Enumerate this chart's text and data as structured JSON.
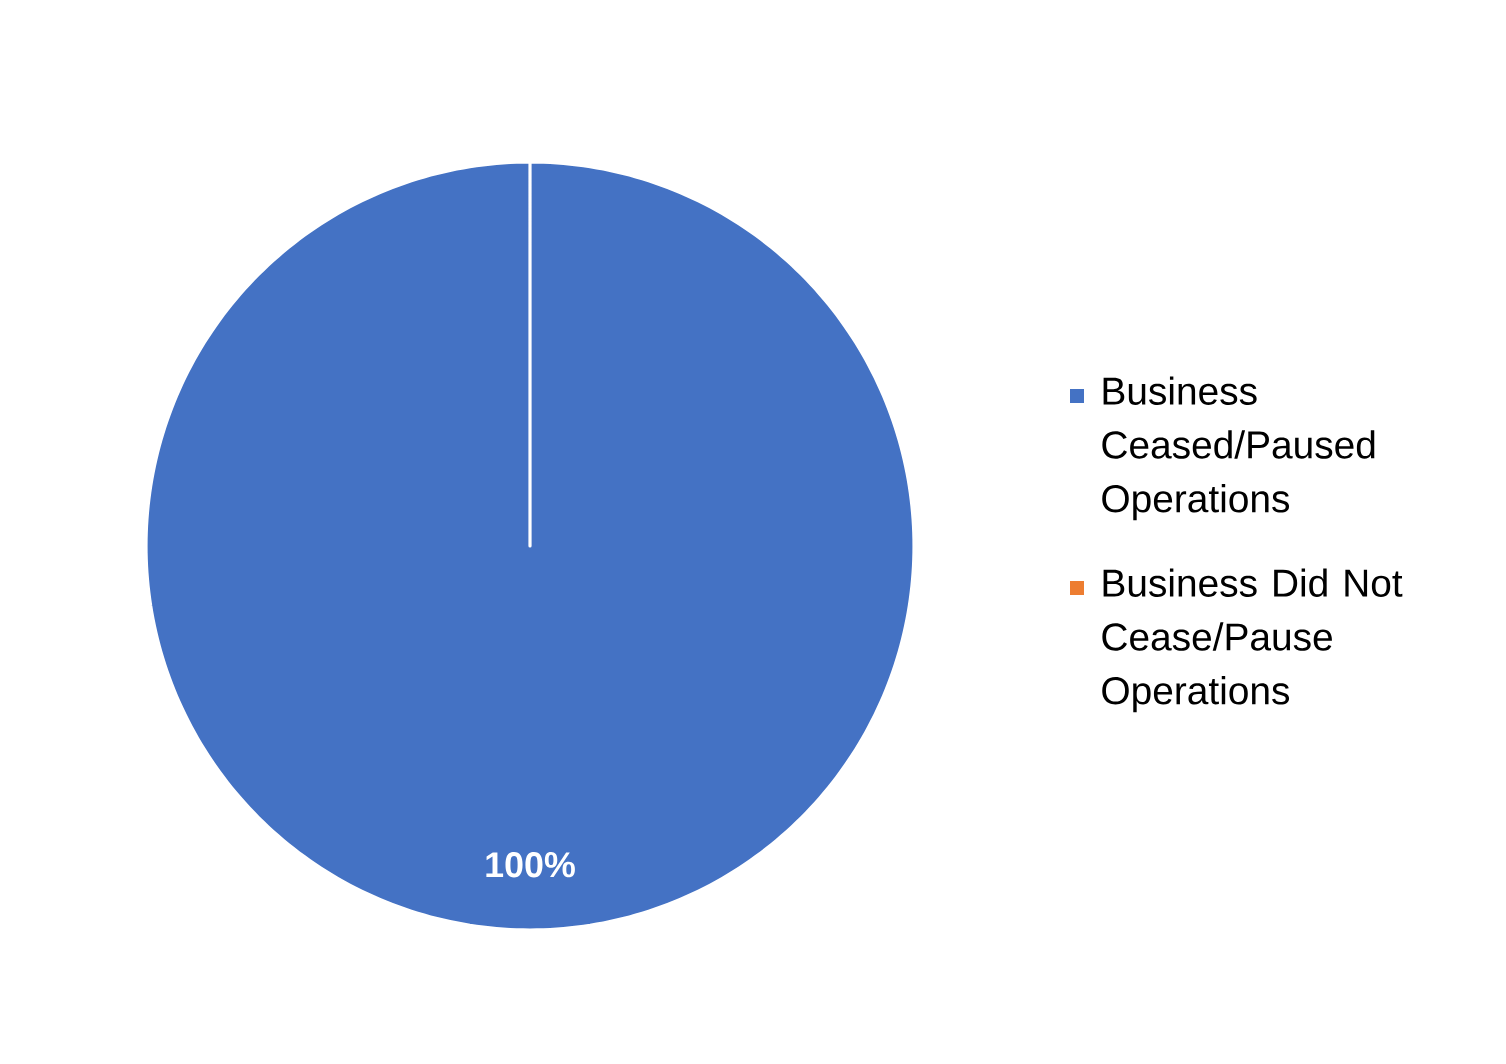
{
  "chart_data": {
    "type": "pie",
    "categories": [
      "Business Ceased/Paused Operations",
      "Business Did Not Cease/Pause Operations"
    ],
    "values": [
      100,
      0
    ],
    "colors": [
      "#4472c4",
      "#ed7d31"
    ],
    "value_labels": [
      "100%",
      null
    ],
    "legend": "right"
  }
}
